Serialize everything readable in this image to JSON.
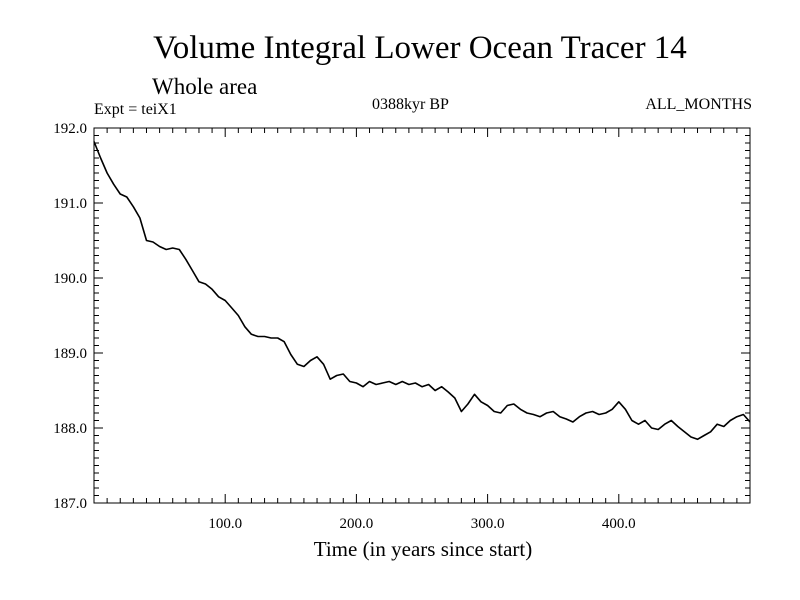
{
  "chart_data": {
    "type": "line",
    "title": "Volume Integral Lower Ocean Tracer 14",
    "subtitle": "Whole area",
    "experiment_label": "Expt = teiX1",
    "period_label": "0388kyr BP",
    "months_label": "ALL_MONTHS",
    "xlabel": "Time (in years since start)",
    "ylabel": "",
    "xlim": [
      0,
      500
    ],
    "ylim": [
      187.0,
      192.0
    ],
    "x_ticks": [
      {
        "value": 100,
        "label": "100.0"
      },
      {
        "value": 200,
        "label": "200.0"
      },
      {
        "value": 300,
        "label": "300.0"
      },
      {
        "value": 400,
        "label": "400.0"
      }
    ],
    "y_ticks": [
      {
        "value": 187.0,
        "label": "187.0"
      },
      {
        "value": 188.0,
        "label": "188.0"
      },
      {
        "value": 189.0,
        "label": "189.0"
      },
      {
        "value": 190.0,
        "label": "190.0"
      },
      {
        "value": 191.0,
        "label": "191.0"
      },
      {
        "value": 192.0,
        "label": "192.0"
      }
    ],
    "grid": false,
    "series": [
      {
        "color": "#000000",
        "x": [
          0,
          5,
          10,
          15,
          20,
          25,
          30,
          35,
          40,
          45,
          50,
          55,
          60,
          65,
          70,
          75,
          80,
          85,
          90,
          95,
          100,
          105,
          110,
          115,
          120,
          125,
          130,
          135,
          140,
          145,
          150,
          155,
          160,
          165,
          170,
          175,
          180,
          185,
          190,
          195,
          200,
          205,
          210,
          215,
          220,
          225,
          230,
          235,
          240,
          245,
          250,
          255,
          260,
          265,
          270,
          275,
          280,
          285,
          290,
          295,
          300,
          305,
          310,
          315,
          320,
          325,
          330,
          335,
          340,
          345,
          350,
          355,
          360,
          365,
          370,
          375,
          380,
          385,
          390,
          395,
          400,
          405,
          410,
          415,
          420,
          425,
          430,
          435,
          440,
          445,
          450,
          455,
          460,
          465,
          470,
          475,
          480,
          485,
          490,
          495,
          500
        ],
        "y": [
          191.82,
          191.6,
          191.4,
          191.25,
          191.12,
          191.08,
          190.95,
          190.8,
          190.5,
          190.48,
          190.42,
          190.38,
          190.4,
          190.38,
          190.25,
          190.1,
          189.95,
          189.92,
          189.85,
          189.75,
          189.7,
          189.6,
          189.5,
          189.35,
          189.25,
          189.22,
          189.22,
          189.2,
          189.2,
          189.15,
          188.98,
          188.85,
          188.82,
          188.9,
          188.95,
          188.85,
          188.65,
          188.7,
          188.72,
          188.62,
          188.6,
          188.55,
          188.62,
          188.58,
          188.6,
          188.62,
          188.58,
          188.62,
          188.58,
          188.6,
          188.55,
          188.58,
          188.5,
          188.55,
          188.48,
          188.4,
          188.22,
          188.32,
          188.45,
          188.35,
          188.3,
          188.22,
          188.2,
          188.3,
          188.32,
          188.25,
          188.2,
          188.18,
          188.15,
          188.2,
          188.22,
          188.15,
          188.12,
          188.08,
          188.15,
          188.2,
          188.22,
          188.18,
          188.2,
          188.25,
          188.35,
          188.25,
          188.1,
          188.05,
          188.1,
          188.0,
          187.98,
          188.05,
          188.1,
          188.02,
          187.95,
          187.88,
          187.85,
          187.9,
          187.95,
          188.05,
          188.02,
          188.1,
          188.15,
          188.18,
          188.08
        ]
      }
    ]
  }
}
